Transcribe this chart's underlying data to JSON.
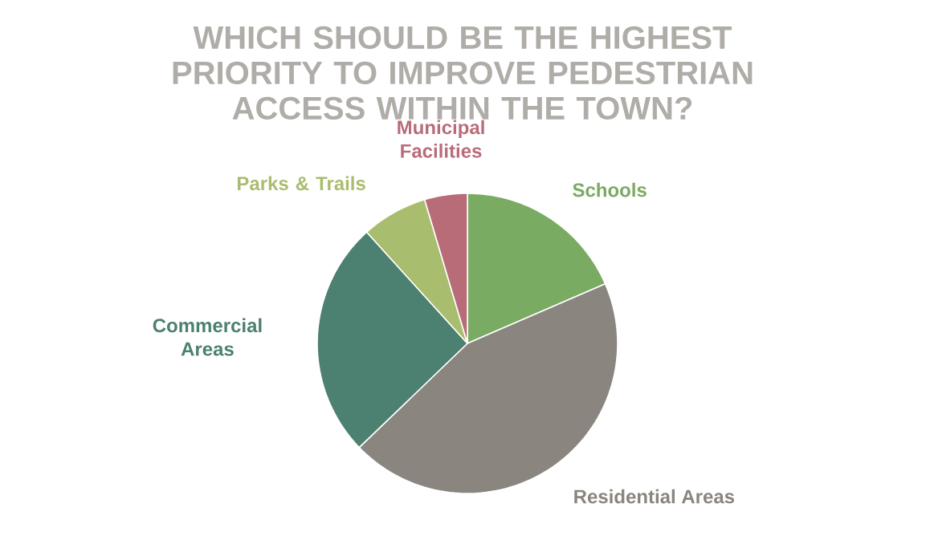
{
  "chart_data": {
    "type": "pie",
    "title": "WHICH SHOULD BE THE HIGHEST PRIORITY TO IMPROVE PEDESTRIAN ACCESS WITHIN THE TOWN?",
    "categories": [
      "Schools",
      "Residential Areas",
      "Commercial Areas",
      "Parks & Trails",
      "Municipal Facilities"
    ],
    "values": [
      18.5,
      44.3,
      25.5,
      7.1,
      4.6
    ],
    "colors": [
      "#7aab62",
      "#8a857e",
      "#4c8070",
      "#a8bd6e",
      "#b86c78"
    ]
  }
}
